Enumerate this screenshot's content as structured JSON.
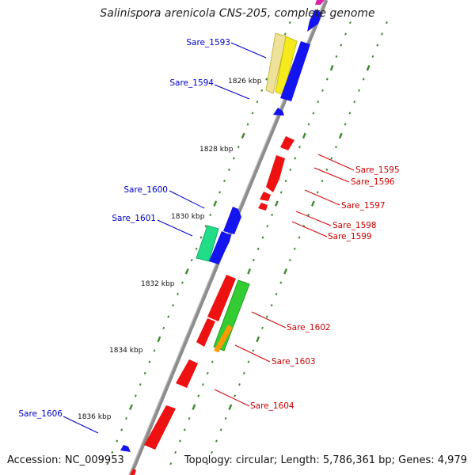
{
  "title": "Salinispora arenicola CNS-205, complete genome",
  "footer": {
    "accession": "Accession: NC_009953",
    "topology": "Topology: circular; Length: 5,786,361 bp; Genes: 4,979"
  },
  "colors": {
    "backbone": "#8c8c8c",
    "tick": "#3a8a2a",
    "forward_label": "#0000cc",
    "reverse_label": "#cc0000",
    "blue": "#1414f0",
    "red": "#ee1111",
    "green": "#33cc33",
    "yellow": "#f4ea1c",
    "pale_yellow": "#eee29a",
    "teal": "#22dd88",
    "orange": "#ff9900"
  },
  "scale_labels": [
    "1826 kbp",
    "1828 kbp",
    "1830 kbp",
    "1832 kbp",
    "1834 kbp",
    "1836 kbp"
  ],
  "gene_labels": {
    "forward": [
      "Sare_1593",
      "Sare_1594",
      "Sare_1600",
      "Sare_1601",
      "Sare_1606"
    ],
    "reverse": [
      "Sare_1595",
      "Sare_1596",
      "Sare_1597",
      "Sare_1598",
      "Sare_1599",
      "Sare_1602",
      "Sare_1603",
      "Sare_1604"
    ]
  }
}
